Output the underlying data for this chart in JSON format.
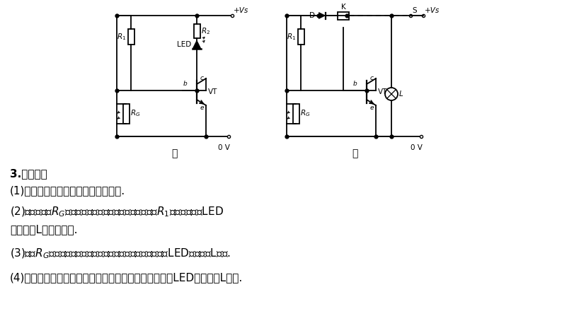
{
  "background_color": "#ffffff",
  "text_color": "#000000",
  "circuit_label_jia": "甲",
  "circuit_label_yi": "乙",
  "step_title": "3.实验步骤",
  "step1": "(1)连接电路，检查无误后，接通电源.",
  "step2a": "(2)让光敏电阻$R_G$受到白天较强的自然光照射，调节电阻$R_1$使发光二极管LED",
  "step2b": "或小灯泡L刚好不发光.",
  "step3": "(3)遮挡$R_G$，当光照减弱到某种程度时，就会看到发光二极管LED或小灯泡L发光.",
  "step4": "(4)让光照加强，当光照强到某种程度时，则发光二极管LED或小灯泡L熄灭."
}
